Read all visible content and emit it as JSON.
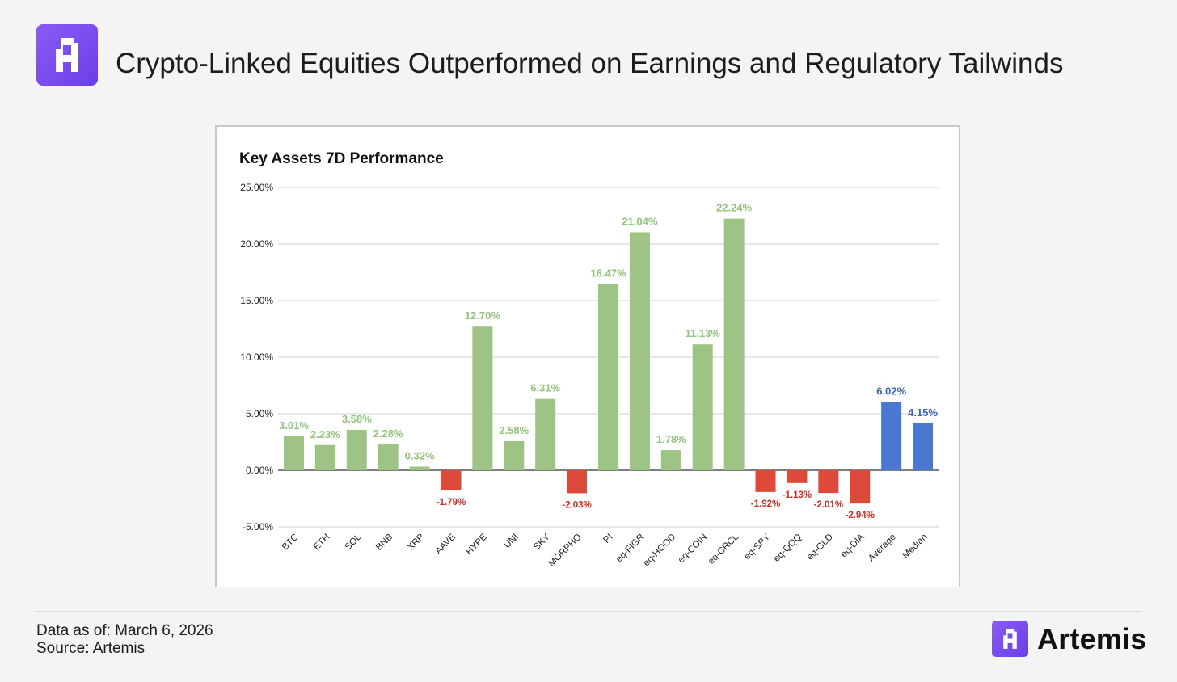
{
  "header": {
    "title": "Crypto-Linked Equities Outperformed on Earnings and Regulatory Tailwinds",
    "logo_icon": "artemis-logo-icon"
  },
  "colors": {
    "positive": "#9dc385",
    "positive_label": "#93c47d",
    "negative": "#de4a3a",
    "negative_label": "#cc2f22",
    "summary": "#4a78d0",
    "summary_label": "#3c64c4",
    "brand": "#7c4ef0"
  },
  "chart_data": {
    "type": "bar",
    "title": "Key Assets 7D Performance",
    "xlabel": "",
    "ylabel": "",
    "ylim": [
      -5,
      25
    ],
    "yticks": [
      -5,
      0,
      5,
      10,
      15,
      20,
      25
    ],
    "ytick_labels": [
      "-5.00%",
      "0.00%",
      "5.00%",
      "10.00%",
      "15.00%",
      "20.00%",
      "25.00%"
    ],
    "grid": true,
    "legend": "none",
    "categories": [
      "BTC",
      "ETH",
      "SOL",
      "BNB",
      "XRP",
      "AAVE",
      "HYPE",
      "UNI",
      "SKY",
      "MORPHO",
      "PI",
      "eq-FIGR",
      "eq-HOOD",
      "eq-COIN",
      "eq-CRCL",
      "eq-SPY",
      "eq-QQQ",
      "eq-GLD",
      "eq-DIA",
      "Average",
      "Median"
    ],
    "values": [
      3.01,
      2.23,
      3.58,
      2.28,
      0.32,
      -1.79,
      12.7,
      2.58,
      6.31,
      -2.03,
      16.47,
      21.04,
      1.78,
      11.13,
      22.24,
      -1.92,
      -1.13,
      -2.01,
      -2.94,
      6.02,
      4.15
    ],
    "value_labels": [
      "3.01%",
      "2.23%",
      "3.58%",
      "2.28%",
      "0.32%",
      "-1.79%",
      "12.70%",
      "2.58%",
      "6.31%",
      "-2.03%",
      "16.47%",
      "21.04%",
      "1.78%",
      "11.13%",
      "22.24%",
      "-1.92%",
      "-1.13%",
      "-2.01%",
      "-2.94%",
      "6.02%",
      "4.15%"
    ],
    "summary_categories": [
      "Average",
      "Median"
    ]
  },
  "footer": {
    "date_text": "Data as of: March 6, 2026",
    "source_text": "Source: Artemis",
    "brand_name": "Artemis",
    "brand_icon": "artemis-logo-icon"
  }
}
